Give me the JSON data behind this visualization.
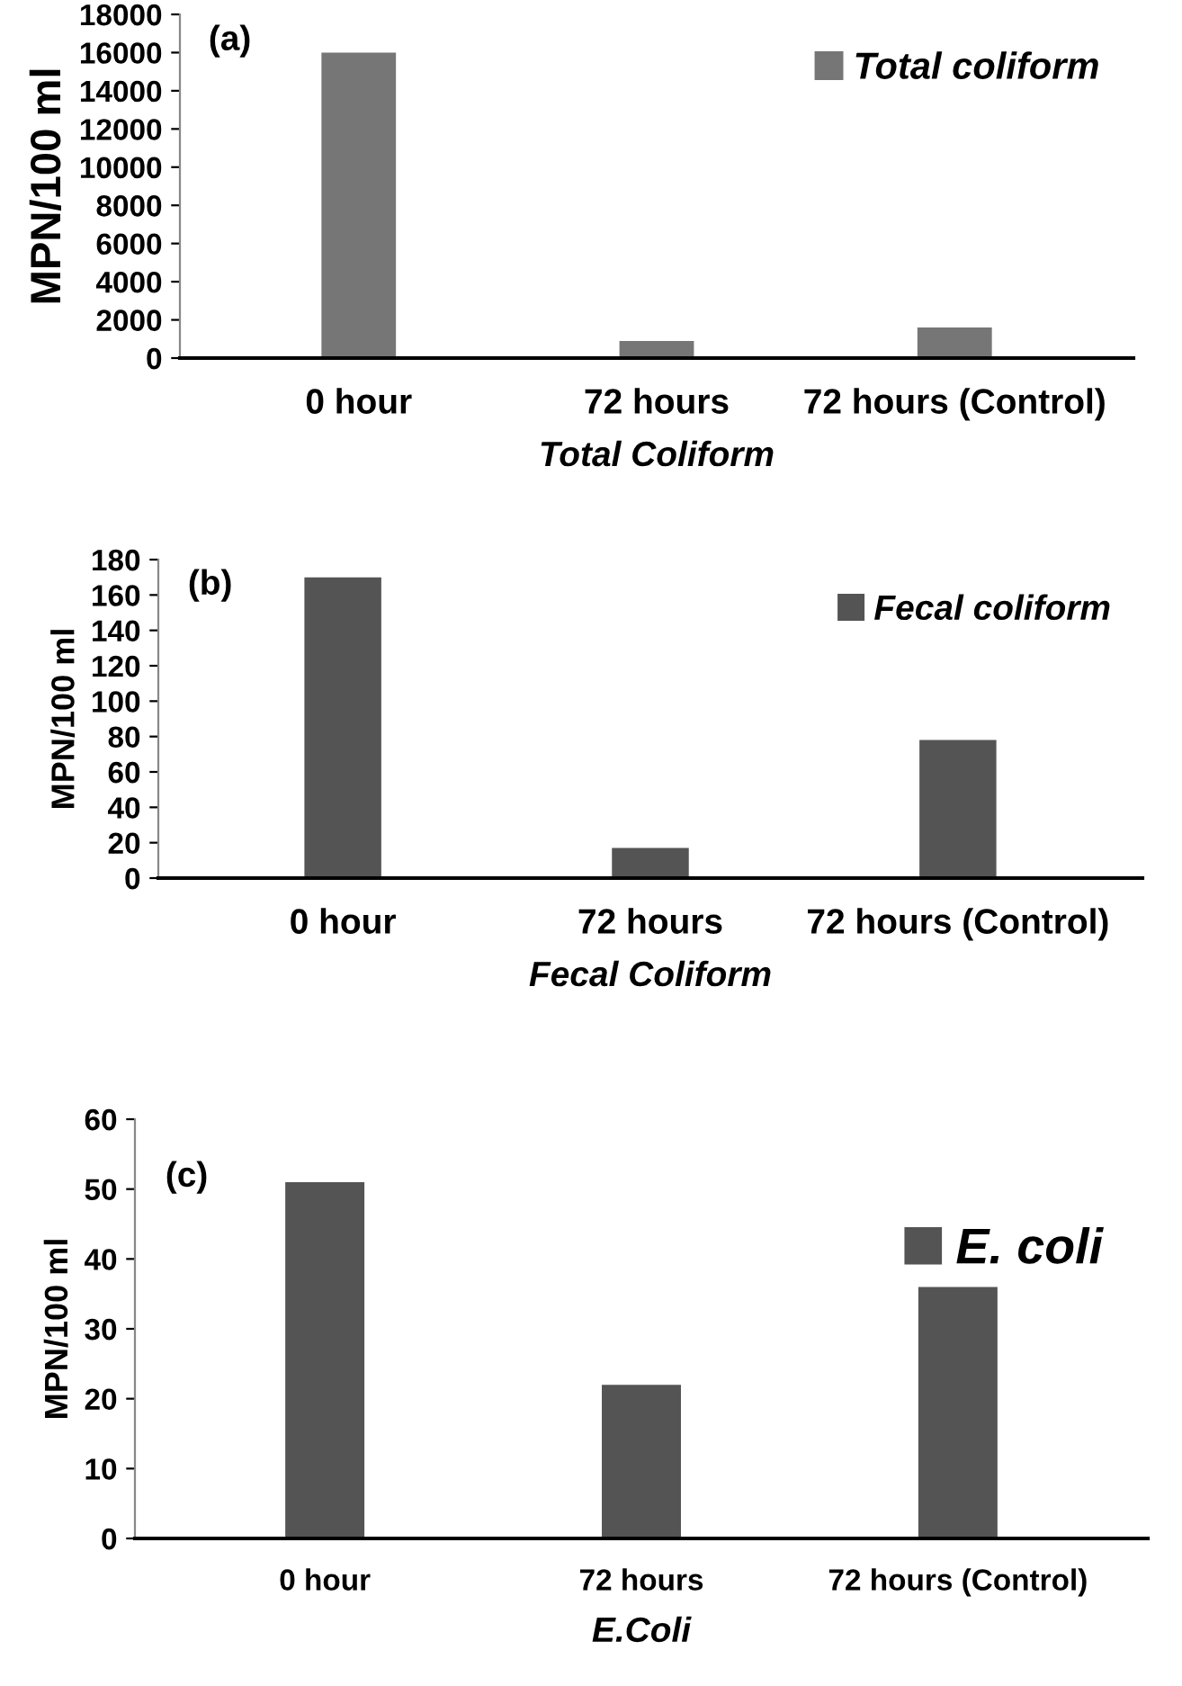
{
  "chart_data": [
    {
      "type": "bar",
      "xlabel": "Total Coliform",
      "ylabel": "MPN/100 ml",
      "annotations": [
        "(a)"
      ],
      "categories": [
        "0 hour",
        "72 hours",
        "72 hours (Control)"
      ],
      "series": [
        {
          "name": "Total coliform",
          "color": "#767676",
          "values": [
            16000,
            900,
            1600
          ]
        }
      ],
      "ylim": [
        0,
        18000
      ],
      "yticks": [
        0,
        2000,
        4000,
        6000,
        8000,
        10000,
        12000,
        14000,
        16000,
        18000
      ],
      "grid": false,
      "legend": "top right"
    },
    {
      "type": "bar",
      "xlabel": "Fecal Coliform",
      "ylabel": "MPN/100 ml",
      "annotations": [
        "(b)"
      ],
      "categories": [
        "0 hour",
        "72 hours",
        "72 hours (Control)"
      ],
      "series": [
        {
          "name": "Fecal coliform",
          "color": "#545454",
          "values": [
            170,
            17,
            78
          ]
        }
      ],
      "ylim": [
        0,
        180
      ],
      "yticks": [
        0,
        20,
        40,
        60,
        80,
        100,
        120,
        140,
        160,
        180
      ],
      "grid": false,
      "legend": "top right"
    },
    {
      "type": "bar",
      "xlabel": "E.Coli",
      "ylabel": "MPN/100 ml",
      "annotations": [
        "(c)"
      ],
      "categories": [
        "0 hour",
        "72 hours",
        "72 hours (Control)"
      ],
      "series": [
        {
          "name": "E. coli",
          "color": "#545454",
          "values": [
            51,
            22,
            36
          ]
        }
      ],
      "ylim": [
        0,
        60
      ],
      "yticks": [
        0,
        10,
        20,
        30,
        40,
        50,
        60
      ],
      "grid": false,
      "legend": "top right"
    }
  ]
}
